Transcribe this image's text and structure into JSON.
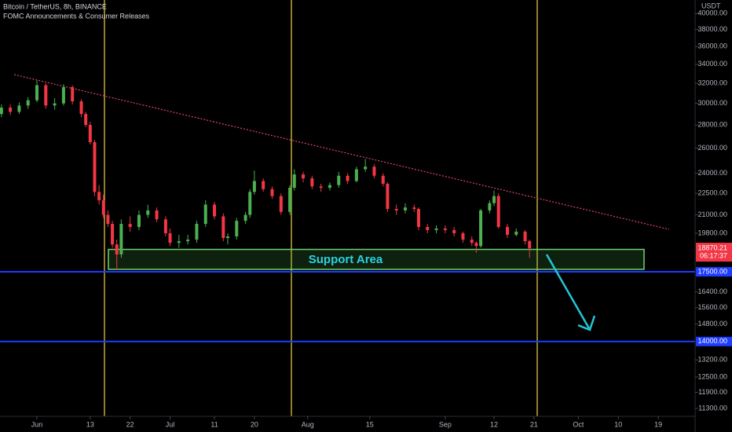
{
  "chart_data": {
    "type": "candlestick",
    "title": "Bitcoin / TetherUS, 8h, BINANCE",
    "subtitle": "FOMC Announcements & Consumer Releases",
    "currency": "USDT",
    "annotation": "Support Area",
    "log_scale": true,
    "up_color": "#4caf50",
    "down_color": "#f23645",
    "x": [
      -8,
      -6,
      -4,
      -2,
      0,
      2,
      4,
      6,
      8,
      10,
      11,
      12,
      13,
      14,
      15,
      16,
      17,
      18,
      19,
      21,
      23,
      25,
      27,
      29,
      30,
      32,
      34,
      36,
      38,
      40,
      42,
      43,
      45,
      47,
      48,
      49,
      51,
      53,
      55,
      57,
      58,
      60,
      62,
      64,
      66,
      68,
      70,
      72,
      74,
      76,
      78,
      79,
      81,
      83,
      85,
      86,
      88,
      90,
      92,
      94,
      96,
      98,
      99,
      100,
      102,
      103,
      104,
      106,
      108,
      110,
      111
    ],
    "candles": [
      [
        29000,
        29900,
        28700,
        29600
      ],
      [
        29600,
        29900,
        28900,
        29200
      ],
      [
        29200,
        30100,
        29000,
        29800
      ],
      [
        29800,
        30600,
        29500,
        30300
      ],
      [
        30300,
        32300,
        30100,
        31800
      ],
      [
        31800,
        32000,
        29500,
        29800
      ],
      [
        29800,
        30500,
        29400,
        30000
      ],
      [
        30000,
        31900,
        29800,
        31600
      ],
      [
        31600,
        31800,
        29900,
        30200
      ],
      [
        30200,
        30400,
        28700,
        29000
      ],
      [
        29000,
        29200,
        27800,
        28000
      ],
      [
        28000,
        28300,
        26300,
        26500
      ],
      [
        26500,
        26700,
        22300,
        22600
      ],
      [
        22600,
        23100,
        21700,
        22000
      ],
      [
        22000,
        22400,
        20800,
        21000
      ],
      [
        21000,
        21300,
        20200,
        20400
      ],
      [
        20400,
        20600,
        18900,
        19100
      ],
      [
        19100,
        19400,
        17600,
        18500
      ],
      [
        18500,
        20700,
        18300,
        20400
      ],
      [
        20400,
        20900,
        19900,
        20200
      ],
      [
        20200,
        21300,
        20000,
        21000
      ],
      [
        21000,
        21700,
        20800,
        21300
      ],
      [
        21300,
        21500,
        20500,
        20700
      ],
      [
        20700,
        20900,
        19600,
        19800
      ],
      [
        19800,
        20100,
        19000,
        19200
      ],
      [
        19200,
        19700,
        18900,
        19300
      ],
      [
        19300,
        19700,
        19100,
        19400
      ],
      [
        19400,
        20600,
        19200,
        20400
      ],
      [
        20400,
        22000,
        20200,
        21700
      ],
      [
        21700,
        21900,
        20700,
        20900
      ],
      [
        20900,
        21100,
        19300,
        19500
      ],
      [
        19500,
        19800,
        19100,
        19600
      ],
      [
        19600,
        20800,
        19400,
        20600
      ],
      [
        20600,
        21200,
        20400,
        21000
      ],
      [
        21000,
        22800,
        20800,
        22600
      ],
      [
        22600,
        24200,
        22400,
        23400
      ],
      [
        23400,
        23600,
        22600,
        22800
      ],
      [
        22800,
        23000,
        22100,
        22300
      ],
      [
        22300,
        22500,
        21000,
        21200
      ],
      [
        21200,
        23100,
        21000,
        22900
      ],
      [
        22900,
        24300,
        22700,
        23900
      ],
      [
        23900,
        24100,
        23300,
        23600
      ],
      [
        23600,
        23800,
        22800,
        23000
      ],
      [
        23000,
        23200,
        22600,
        22900
      ],
      [
        22900,
        23300,
        22700,
        23100
      ],
      [
        23100,
        24100,
        22900,
        23800
      ],
      [
        23800,
        24000,
        23200,
        23400
      ],
      [
        23400,
        24500,
        23300,
        24300
      ],
      [
        24300,
        25100,
        24100,
        24500
      ],
      [
        24500,
        24700,
        23600,
        23800
      ],
      [
        23800,
        24000,
        23000,
        23200
      ],
      [
        23200,
        23300,
        21200,
        21400
      ],
      [
        21400,
        21700,
        21000,
        21300
      ],
      [
        21300,
        21800,
        21100,
        21500
      ],
      [
        21500,
        21700,
        21200,
        21400
      ],
      [
        21400,
        21500,
        20000,
        20200
      ],
      [
        20200,
        20400,
        19800,
        20000
      ],
      [
        20000,
        20300,
        19800,
        20100
      ],
      [
        20100,
        20300,
        19800,
        20000
      ],
      [
        20000,
        20200,
        19600,
        19800
      ],
      [
        19800,
        19900,
        19200,
        19400
      ],
      [
        19400,
        19600,
        19000,
        19200
      ],
      [
        19200,
        19300,
        18600,
        19000
      ],
      [
        19000,
        21400,
        18900,
        21300
      ],
      [
        21300,
        22000,
        21100,
        21800
      ],
      [
        21800,
        22700,
        21600,
        22300
      ],
      [
        22300,
        22500,
        20100,
        20200
      ],
      [
        20200,
        20400,
        19500,
        19700
      ],
      [
        19700,
        20100,
        19600,
        19900
      ],
      [
        19900,
        20000,
        19100,
        19300
      ],
      [
        19300,
        19400,
        18300,
        18870.21
      ]
    ],
    "xlim": [
      -8.32,
      148.3
    ],
    "xticks": [
      {
        "value": 0,
        "label": "Jun"
      },
      {
        "value": 12,
        "label": "13"
      },
      {
        "value": 21,
        "label": "22"
      },
      {
        "value": 30,
        "label": "Jul"
      },
      {
        "value": 40,
        "label": "11"
      },
      {
        "value": 49,
        "label": "20"
      },
      {
        "value": 61,
        "label": "Aug"
      },
      {
        "value": 75,
        "label": "15"
      },
      {
        "value": 92,
        "label": "Sep"
      },
      {
        "value": 103,
        "label": "12"
      },
      {
        "value": 112,
        "label": "21"
      },
      {
        "value": 122,
        "label": "Oct"
      },
      {
        "value": 131,
        "label": "10"
      },
      {
        "value": 140,
        "label": "19"
      }
    ],
    "ylim": [
      11020,
      41770
    ],
    "yticks": [
      {
        "value": 40000,
        "label": "40000.00"
      },
      {
        "value": 38000,
        "label": "38000.00"
      },
      {
        "value": 36000,
        "label": "36000.00"
      },
      {
        "value": 34000,
        "label": "34000.00"
      },
      {
        "value": 32000,
        "label": "32000.00"
      },
      {
        "value": 30000,
        "label": "30000.00"
      },
      {
        "value": 28000,
        "label": "28000.00"
      },
      {
        "value": 26000,
        "label": "26000.00"
      },
      {
        "value": 24000,
        "label": "24000.00"
      },
      {
        "value": 22500,
        "label": "22500.00"
      },
      {
        "value": 21000,
        "label": "21000.00"
      },
      {
        "value": 19800,
        "label": "19800.00"
      },
      {
        "value": 16400,
        "label": "16400.00"
      },
      {
        "value": 15600,
        "label": "15600.00"
      },
      {
        "value": 14800,
        "label": "14800.00"
      },
      {
        "value": 13200,
        "label": "13200.00"
      },
      {
        "value": 12500,
        "label": "12500.00"
      },
      {
        "value": 11900,
        "label": "11900.00"
      },
      {
        "value": 11300,
        "label": "11300.00"
      }
    ],
    "levels": [
      {
        "value": 17500,
        "label": "17500.00"
      },
      {
        "value": 14000,
        "label": "14000.00"
      }
    ],
    "level_color": "#1e3cff",
    "support_zone": [
      17640,
      18800
    ],
    "last_price": {
      "value": 18870.21,
      "label": "18870.21"
    },
    "countdown": "06:17:37"
  }
}
